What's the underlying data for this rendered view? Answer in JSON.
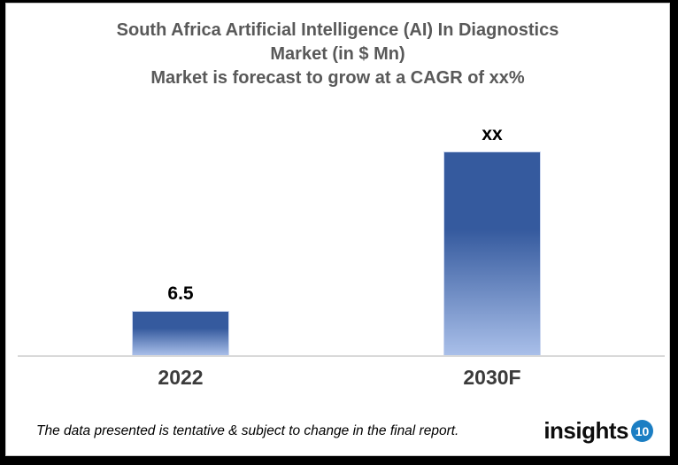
{
  "title": {
    "line1": "South Africa Artificial Intelligence (AI) In Diagnostics",
    "line2": "Market (in $ Mn)",
    "line3": "Market is forecast to grow at a CAGR of xx%"
  },
  "chart_data": {
    "type": "bar",
    "title": "South Africa Artificial Intelligence (AI) In Diagnostics Market (in $ Mn)",
    "subtitle": "Market is forecast to grow at a CAGR of xx%",
    "categories": [
      "2022",
      "2030F"
    ],
    "values": [
      6.5,
      30
    ],
    "value_labels": [
      "6.5",
      "xx"
    ],
    "ylim": [
      0,
      30
    ],
    "grid": false,
    "legend": false,
    "y_axis_shown": false,
    "bar_color_top": "#355a9e",
    "bar_color_bottom": "#a9bfe9",
    "axis_line_color": "#d9d9d9"
  },
  "footer": {
    "disclaimer": "The data presented is tentative & subject to change in the final report.",
    "logo_text": "insights",
    "logo_badge": "10",
    "logo_badge_color": "#1b7ec3"
  }
}
